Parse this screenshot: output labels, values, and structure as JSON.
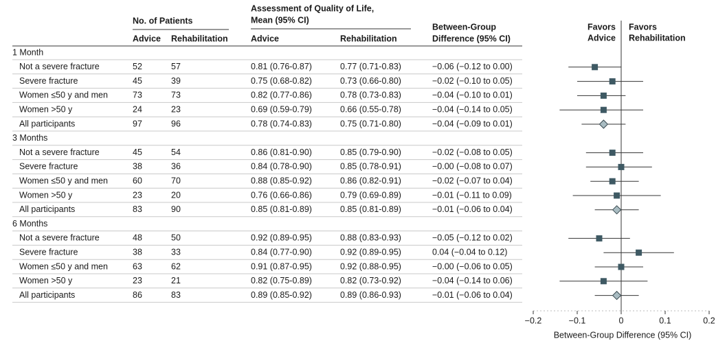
{
  "chart_data": {
    "type": "forest",
    "headers": {
      "patients": "No. of Patients",
      "advice_n": "Advice",
      "rehab_n": "Rehabilitation",
      "qol": [
        "Assessment of Quality of Life,",
        "Mean (95% CI)"
      ],
      "advice_qol": "Advice",
      "rehab_qol": "Rehabilitation",
      "diff": [
        "Between-Group",
        "Difference (95% CI)"
      ]
    },
    "favors_left": [
      "Favors",
      "Advice"
    ],
    "favors_right": [
      "Favors",
      "Rehabilitation"
    ],
    "groups": [
      {
        "label": "1 Month",
        "rows": [
          {
            "label": "Not a severe fracture",
            "advice_n": 52,
            "rehab_n": 57,
            "advice_qol": "0.81 (0.76-0.87)",
            "rehab_qol": "0.77 (0.71-0.83)",
            "value": -0.06,
            "lower": -0.12,
            "upper": 0.0,
            "value_label": "−0.06 (−0.12 to 0.00)",
            "marker": "square"
          },
          {
            "label": "Severe fracture",
            "advice_n": 45,
            "rehab_n": 39,
            "advice_qol": "0.75 (0.68-0.82)",
            "rehab_qol": "0.73 (0.66-0.80)",
            "value": -0.02,
            "lower": -0.1,
            "upper": 0.05,
            "value_label": "−0.02 (−0.10 to 0.05)",
            "marker": "square"
          },
          {
            "label": "Women ≤50 y and men",
            "advice_n": 73,
            "rehab_n": 73,
            "advice_qol": "0.82 (0.77-0.86)",
            "rehab_qol": "0.78 (0.73-0.83)",
            "value": -0.04,
            "lower": -0.1,
            "upper": 0.01,
            "value_label": "−0.04 (−0.10 to 0.01)",
            "marker": "square"
          },
          {
            "label": "Women >50 y",
            "advice_n": 24,
            "rehab_n": 23,
            "advice_qol": "0.69 (0.59-0.79)",
            "rehab_qol": "0.66 (0.55-0.78)",
            "value": -0.04,
            "lower": -0.14,
            "upper": 0.05,
            "value_label": "−0.04 (−0.14 to 0.05)",
            "marker": "square"
          },
          {
            "label": "All participants",
            "advice_n": 97,
            "rehab_n": 96,
            "advice_qol": "0.78 (0.74-0.83)",
            "rehab_qol": "0.75 (0.71-0.80)",
            "value": -0.04,
            "lower": -0.09,
            "upper": 0.01,
            "value_label": "−0.04 (−0.09 to 0.01)",
            "marker": "diamond"
          }
        ]
      },
      {
        "label": "3 Months",
        "rows": [
          {
            "label": "Not a severe fracture",
            "advice_n": 45,
            "rehab_n": 54,
            "advice_qol": "0.86 (0.81-0.90)",
            "rehab_qol": "0.85 (0.79-0.90)",
            "value": -0.02,
            "lower": -0.08,
            "upper": 0.05,
            "value_label": "−0.02 (−0.08 to 0.05)",
            "marker": "square"
          },
          {
            "label": "Severe fracture",
            "advice_n": 38,
            "rehab_n": 36,
            "advice_qol": "0.84 (0.78-0.90)",
            "rehab_qol": "0.85 (0.78-0.91)",
            "value": 0.0,
            "lower": -0.08,
            "upper": 0.07,
            "value_label": "−0.00 (−0.08 to 0.07)",
            "marker": "square"
          },
          {
            "label": "Women ≤50 y and men",
            "advice_n": 60,
            "rehab_n": 70,
            "advice_qol": "0.88 (0.85-0.92)",
            "rehab_qol": "0.86 (0.82-0.91)",
            "value": -0.02,
            "lower": -0.07,
            "upper": 0.04,
            "value_label": "−0.02 (−0.07 to 0.04)",
            "marker": "square"
          },
          {
            "label": "Women >50 y",
            "advice_n": 23,
            "rehab_n": 20,
            "advice_qol": "0.76 (0.66-0.86)",
            "rehab_qol": "0.79 (0.69-0.89)",
            "value": -0.01,
            "lower": -0.11,
            "upper": 0.09,
            "value_label": "−0.01 (−0.11 to 0.09)",
            "marker": "square"
          },
          {
            "label": "All participants",
            "advice_n": 83,
            "rehab_n": 90,
            "advice_qol": "0.85 (0.81-0.89)",
            "rehab_qol": "0.85 (0.81-0.89)",
            "value": -0.01,
            "lower": -0.06,
            "upper": 0.04,
            "value_label": "−0.01 (−0.06 to 0.04)",
            "marker": "diamond"
          }
        ]
      },
      {
        "label": "6 Months",
        "rows": [
          {
            "label": "Not a severe fracture",
            "advice_n": 48,
            "rehab_n": 50,
            "advice_qol": "0.92 (0.89-0.95)",
            "rehab_qol": "0.88 (0.83-0.93)",
            "value": -0.05,
            "lower": -0.12,
            "upper": 0.02,
            "value_label": "−0.05 (−0.12 to 0.02)",
            "marker": "square"
          },
          {
            "label": "Severe fracture",
            "advice_n": 38,
            "rehab_n": 33,
            "advice_qol": "0.84 (0.77-0.90)",
            "rehab_qol": "0.92 (0.89-0.95)",
            "value": 0.04,
            "lower": -0.04,
            "upper": 0.12,
            "value_label": "0.04 (−0.04 to 0.12)",
            "marker": "square"
          },
          {
            "label": "Women ≤50 y and men",
            "advice_n": 63,
            "rehab_n": 62,
            "advice_qol": "0.91 (0.87-0.95)",
            "rehab_qol": "0.92 (0.88-0.95)",
            "value": 0.0,
            "lower": -0.06,
            "upper": 0.05,
            "value_label": "−0.00 (−0.06 to 0.05)",
            "marker": "square"
          },
          {
            "label": "Women >50 y",
            "advice_n": 23,
            "rehab_n": 21,
            "advice_qol": "0.82 (0.75-0.89)",
            "rehab_qol": "0.82 (0.73-0.92)",
            "value": -0.04,
            "lower": -0.14,
            "upper": 0.06,
            "value_label": "−0.04 (−0.14 to 0.06)",
            "marker": "square"
          },
          {
            "label": "All participants",
            "advice_n": 86,
            "rehab_n": 83,
            "advice_qol": "0.89 (0.85-0.92)",
            "rehab_qol": "0.89 (0.86-0.93)",
            "value": -0.01,
            "lower": -0.06,
            "upper": 0.04,
            "value_label": "−0.01 (−0.06 to 0.04)",
            "marker": "diamond"
          }
        ]
      }
    ],
    "xlim": [
      -0.2,
      0.2
    ],
    "xticks": [
      {
        "value": -0.2,
        "label": "−0.2"
      },
      {
        "value": -0.1,
        "label": "−0.1"
      },
      0,
      {
        "value": 0.1,
        "label": "0.1"
      },
      {
        "value": 0.2,
        "label": "0.2"
      }
    ],
    "xlabel": "Between-Group Difference (95% CI)",
    "marker_color": "#3e5963",
    "diamond_color": "#a9bcc2"
  }
}
